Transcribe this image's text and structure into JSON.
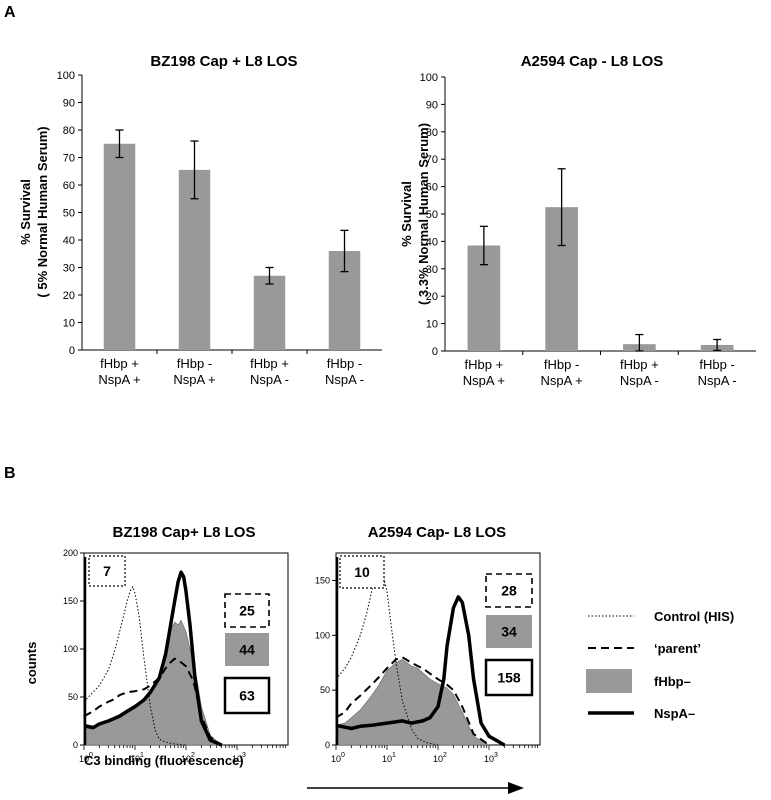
{
  "panels": {
    "a": "A",
    "b": "B"
  },
  "chart_data": [
    {
      "type": "bar",
      "title": "BZ198 Cap + L8 LOS",
      "ylabel_line1": "% Survival",
      "ylabel_line2": "( 5% Normal Human Serum)",
      "ylim": [
        0,
        100
      ],
      "yticks": [
        "0",
        "10",
        "20",
        "30",
        "40",
        "50",
        "60",
        "70",
        "80",
        "90",
        "100"
      ],
      "categories": [
        {
          "line1": "fHbp +",
          "line2": "NspA +"
        },
        {
          "line1": "fHbp -",
          "line2": "NspA +"
        },
        {
          "line1": "fHbp +",
          "line2": "NspA -"
        },
        {
          "line1": "fHbp -",
          "line2": "NspA -"
        }
      ],
      "values": [
        75,
        65.5,
        27,
        36
      ],
      "errors": [
        5,
        10.5,
        3,
        7.5
      ],
      "bar_color": "#999999"
    },
    {
      "type": "bar",
      "title": "A2594 Cap - L8 LOS",
      "ylabel_line1": "% Survival",
      "ylabel_line2": "( 3.3% Normal Human Serum)",
      "ylim": [
        0,
        100
      ],
      "yticks": [
        "0",
        "10",
        "20",
        "30",
        "40",
        "50",
        "60",
        "70",
        "80",
        "90",
        "100"
      ],
      "categories": [
        {
          "line1": "fHbp +",
          "line2": "NspA +"
        },
        {
          "line1": "fHbp -",
          "line2": "NspA +"
        },
        {
          "line1": "fHbp +",
          "line2": "NspA -"
        },
        {
          "line1": "fHbp -",
          "line2": "NspA -"
        }
      ],
      "values": [
        38.5,
        52.5,
        2.5,
        2.2
      ],
      "errors": [
        7,
        14,
        3.5,
        2
      ],
      "bar_color": "#999999"
    },
    {
      "type": "line",
      "title": "BZ198 Cap+  L8 LOS",
      "ylabel": "counts",
      "xlabel": "C3 binding (fluorescence)",
      "xscale": "log",
      "xlim": [
        1,
        10000
      ],
      "ylim": [
        0,
        200
      ],
      "yticks": [
        "0",
        "50",
        "100",
        "150",
        "200"
      ],
      "xticks": [
        "10",
        "10",
        "10",
        "10"
      ],
      "xtick_exps": [
        "0",
        "1",
        "2",
        "3"
      ],
      "boxes": [
        "7",
        "25",
        "44",
        "63"
      ],
      "series": [
        {
          "key": "control",
          "x": [
            1,
            1.5,
            2,
            3,
            4,
            5,
            6,
            7,
            8,
            9,
            10,
            12,
            15,
            20,
            25,
            30,
            40,
            60,
            100
          ],
          "y": [
            45,
            55,
            62,
            78,
            98,
            118,
            135,
            150,
            160,
            165,
            158,
            135,
            90,
            40,
            15,
            6,
            3,
            1,
            0
          ]
        },
        {
          "key": "parent",
          "x": [
            1,
            1.5,
            2,
            3,
            4,
            5,
            7,
            10,
            15,
            20,
            30,
            40,
            50,
            60,
            70,
            80,
            100,
            130,
            150,
            200,
            300,
            500
          ],
          "y": [
            30,
            35,
            40,
            45,
            48,
            52,
            55,
            56,
            58,
            62,
            70,
            80,
            86,
            90,
            88,
            86,
            82,
            70,
            60,
            30,
            8,
            0
          ]
        },
        {
          "key": "fhbp",
          "x": [
            1,
            1.5,
            2,
            3,
            5,
            7,
            10,
            15,
            20,
            30,
            40,
            50,
            60,
            70,
            80,
            100,
            120,
            150,
            200,
            300,
            500
          ],
          "y": [
            22,
            20,
            22,
            26,
            32,
            37,
            42,
            48,
            56,
            70,
            95,
            120,
            128,
            125,
            130,
            118,
            100,
            80,
            40,
            10,
            0
          ]
        },
        {
          "key": "nspa",
          "x": [
            1,
            1.5,
            2,
            3,
            5,
            7,
            10,
            15,
            20,
            30,
            40,
            50,
            60,
            70,
            80,
            90,
            100,
            120,
            150,
            200,
            300,
            500
          ],
          "y": [
            20,
            18,
            22,
            25,
            30,
            35,
            40,
            47,
            55,
            70,
            95,
            125,
            150,
            170,
            180,
            175,
            160,
            125,
            70,
            25,
            5,
            0
          ]
        }
      ]
    },
    {
      "type": "line",
      "title": "A2594 Cap-  L8 LOS",
      "ylabel": "",
      "xlabel": "",
      "xscale": "log",
      "xlim": [
        1,
        10000
      ],
      "ylim": [
        0,
        175
      ],
      "yticks": [
        "0",
        "50",
        "100",
        "150"
      ],
      "xticks": [
        "10",
        "10",
        "10",
        "10"
      ],
      "xtick_exps": [
        "0",
        "1",
        "2",
        "3"
      ],
      "boxes": [
        "10",
        "28",
        "34",
        "158"
      ],
      "series": [
        {
          "key": "control",
          "x": [
            1,
            1.5,
            2,
            3,
            4,
            5,
            6,
            7,
            8,
            10,
            12,
            15,
            20,
            30,
            40,
            60,
            100
          ],
          "y": [
            60,
            70,
            80,
            100,
            120,
            140,
            155,
            160,
            158,
            140,
            110,
            75,
            40,
            15,
            6,
            2,
            0
          ]
        },
        {
          "key": "parent",
          "x": [
            1,
            1.5,
            2,
            3,
            5,
            7,
            10,
            15,
            20,
            30,
            40,
            50,
            70,
            100,
            150,
            200,
            300,
            500,
            1000
          ],
          "y": [
            25,
            30,
            38,
            45,
            55,
            62,
            70,
            78,
            80,
            75,
            72,
            70,
            65,
            60,
            55,
            50,
            35,
            10,
            0
          ]
        },
        {
          "key": "fhbp",
          "x": [
            1,
            1.5,
            2,
            3,
            5,
            7,
            10,
            15,
            20,
            30,
            40,
            50,
            70,
            100,
            150,
            200,
            300,
            500,
            1000
          ],
          "y": [
            18,
            20,
            25,
            32,
            45,
            55,
            68,
            75,
            78,
            72,
            70,
            66,
            60,
            56,
            52,
            46,
            30,
            8,
            0
          ]
        },
        {
          "key": "nspa",
          "x": [
            1,
            2,
            3,
            5,
            10,
            20,
            30,
            50,
            70,
            100,
            130,
            150,
            200,
            250,
            300,
            400,
            500,
            700,
            1000,
            2000
          ],
          "y": [
            18,
            15,
            17,
            18,
            20,
            22,
            20,
            22,
            25,
            35,
            60,
            90,
            125,
            135,
            130,
            100,
            60,
            20,
            8,
            0
          ]
        }
      ]
    }
  ],
  "legend": [
    {
      "key": "control",
      "label": "Control (HIS)"
    },
    {
      "key": "parent",
      "label": "‘parent’"
    },
    {
      "key": "fhbp",
      "label": "fHbp–"
    },
    {
      "key": "nspa",
      "label": "NspA–"
    }
  ],
  "colors": {
    "bar": "#999999",
    "fill": "#999999",
    "line": "#000000"
  }
}
